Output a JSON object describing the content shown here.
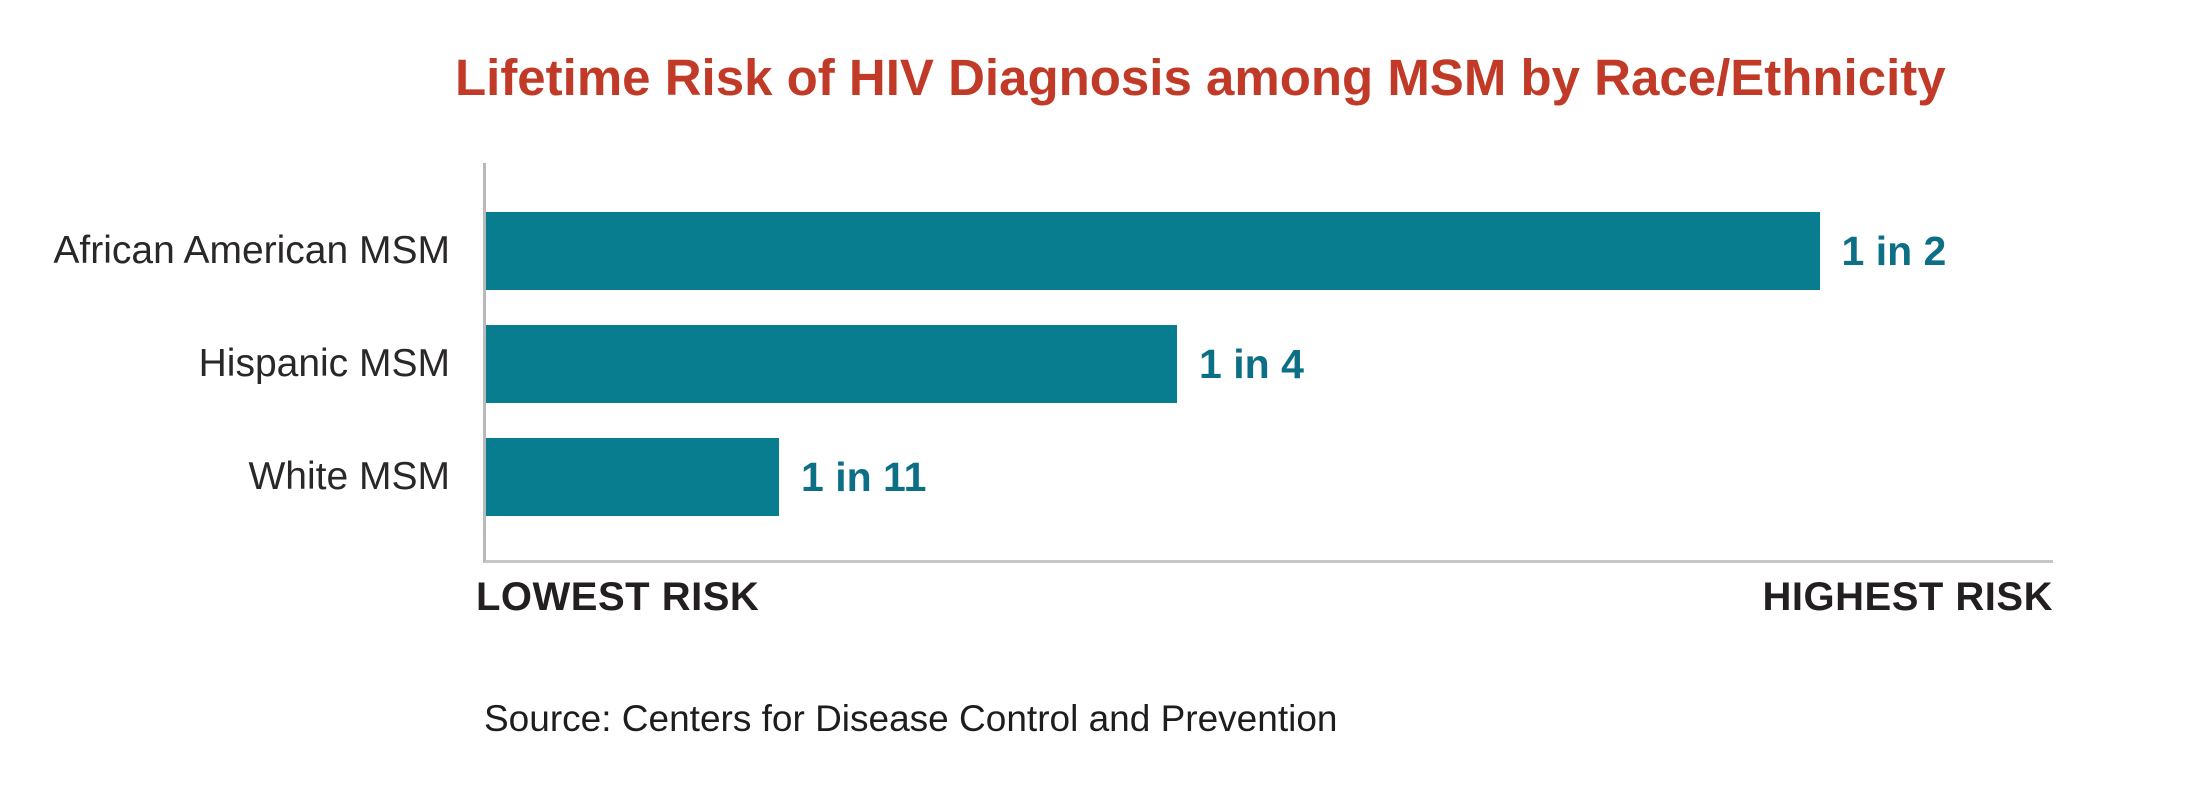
{
  "title": "Lifetime Risk of HIV Diagnosis among MSM by Race/Ethnicity",
  "chart_data": {
    "type": "bar",
    "orientation": "horizontal",
    "title": "Lifetime Risk of HIV Diagnosis among MSM by Race/Ethnicity",
    "categories": [
      "African American MSM",
      "Hispanic MSM",
      "White MSM"
    ],
    "values": [
      0.5,
      0.25,
      0.0909
    ],
    "value_labels": [
      "1 in 2",
      "1 in 4",
      "1 in 11"
    ],
    "xlabel_left": "LOWEST RISK",
    "xlabel_right": "HIGHEST RISK",
    "xlim": [
      0,
      0.588
    ],
    "grid": false,
    "legend": false,
    "rows": [
      {
        "category": "African American MSM",
        "value_label": "1 in 2",
        "risk": 0.5,
        "bar_frac": 0.851
      },
      {
        "category": "Hispanic MSM",
        "value_label": "1 in 4",
        "risk": 0.25,
        "bar_frac": 0.441
      },
      {
        "category": "White MSM",
        "value_label": "1 in 11",
        "risk": 0.0909,
        "bar_frac": 0.187
      }
    ]
  },
  "source": {
    "text": "Source: Centers for Disease Control and Prevention"
  },
  "colors": {
    "title_red": "#C13A27",
    "bar_teal": "#077D8F",
    "value_label_teal": "#0D6F86",
    "axis_gray": "#c0c0c0",
    "text_dark": "#231f20"
  }
}
